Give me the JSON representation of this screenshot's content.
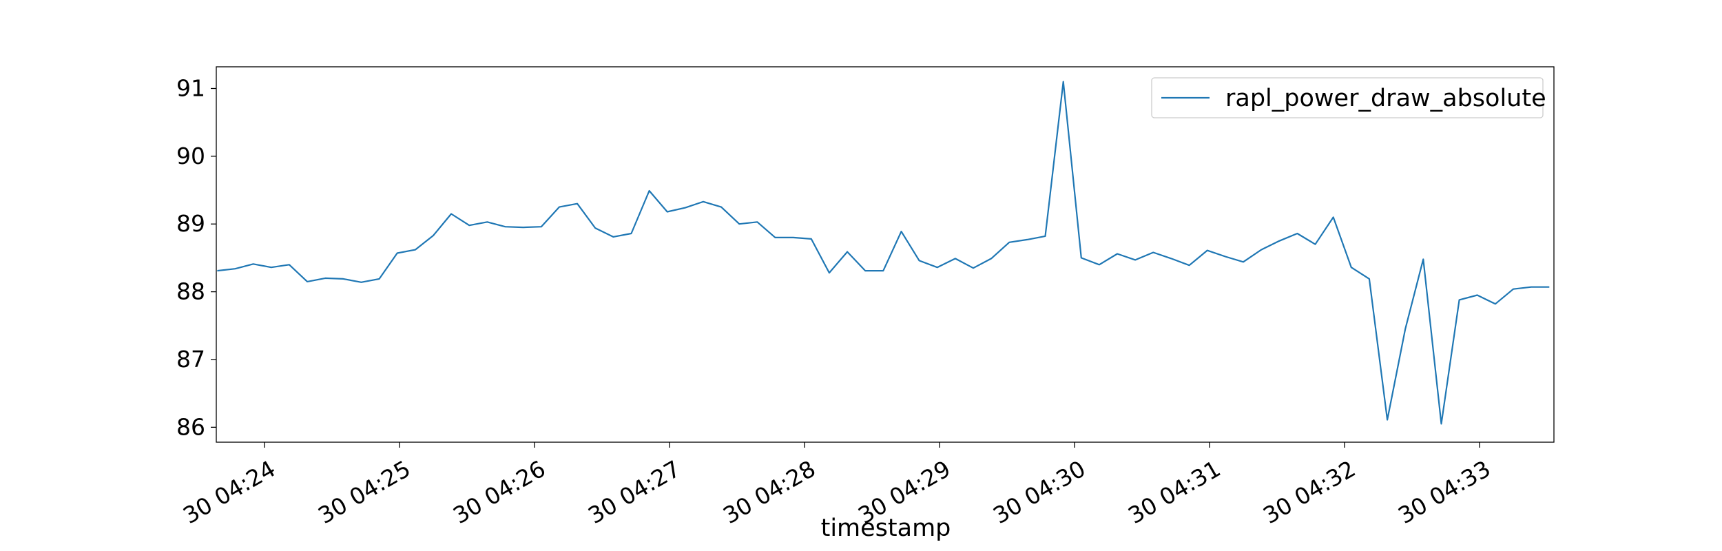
{
  "chart_data": {
    "type": "line",
    "title": "",
    "xlabel": "timestamp",
    "ylabel": "",
    "x_tick_labels": [
      "30 04:24",
      "30 04:25",
      "30 04:26",
      "30 04:27",
      "30 04:28",
      "30 04:29",
      "30 04:30",
      "30 04:31",
      "30 04:32",
      "30 04:33"
    ],
    "y_tick_labels": [
      "86",
      "87",
      "88",
      "89",
      "90",
      "91"
    ],
    "ylim": [
      85.78,
      91.32
    ],
    "legend_position": "upper right",
    "grid": false,
    "series": [
      {
        "name": "rapl_power_draw_absolute",
        "color": "#1f77b4",
        "x": [
          "04:23:39",
          "04:23:47",
          "04:23:55",
          "04:24:03",
          "04:24:11",
          "04:24:19",
          "04:24:27",
          "04:24:35",
          "04:24:43",
          "04:24:51",
          "04:24:59",
          "04:25:07",
          "04:25:15",
          "04:25:23",
          "04:25:31",
          "04:25:39",
          "04:25:47",
          "04:25:55",
          "04:26:03",
          "04:26:11",
          "04:26:19",
          "04:26:27",
          "04:26:35",
          "04:26:43",
          "04:26:51",
          "04:26:59",
          "04:27:07",
          "04:27:15",
          "04:27:23",
          "04:27:31",
          "04:27:39",
          "04:27:47",
          "04:27:55",
          "04:28:03",
          "04:28:11",
          "04:28:19",
          "04:28:27",
          "04:28:35",
          "04:28:43",
          "04:28:51",
          "04:28:59",
          "04:29:07",
          "04:29:15",
          "04:29:23",
          "04:29:31",
          "04:29:39",
          "04:29:47",
          "04:29:55",
          "04:30:03",
          "04:30:11",
          "04:30:19",
          "04:30:27",
          "04:30:35",
          "04:30:43",
          "04:30:51",
          "04:30:59",
          "04:31:07",
          "04:31:15",
          "04:31:23",
          "04:31:31",
          "04:31:39",
          "04:31:47",
          "04:31:55",
          "04:32:03",
          "04:32:11",
          "04:32:19",
          "04:32:27",
          "04:32:35",
          "04:32:43",
          "04:32:51",
          "04:32:59",
          "04:33:07",
          "04:33:15",
          "04:33:23",
          "04:33:31"
        ],
        "y": [
          88.31,
          88.34,
          88.41,
          88.36,
          88.4,
          88.15,
          88.2,
          88.19,
          88.14,
          88.19,
          88.57,
          88.62,
          88.83,
          89.15,
          88.98,
          89.03,
          88.96,
          88.95,
          88.96,
          89.25,
          89.3,
          88.94,
          88.81,
          88.86,
          89.49,
          89.18,
          89.24,
          89.33,
          89.25,
          89.0,
          89.03,
          88.8,
          88.8,
          88.78,
          88.28,
          88.59,
          88.31,
          88.31,
          88.89,
          88.46,
          88.36,
          88.49,
          88.35,
          88.49,
          88.73,
          88.77,
          88.82,
          91.1,
          88.5,
          88.4,
          88.56,
          88.47,
          88.58,
          88.49,
          88.39,
          88.61,
          88.52,
          88.44,
          88.62,
          88.75,
          88.86,
          88.7,
          89.1,
          88.36,
          88.19,
          86.11,
          87.45,
          88.48,
          86.05,
          87.88,
          87.95,
          87.82,
          88.04,
          88.07,
          88.07
        ]
      }
    ]
  }
}
